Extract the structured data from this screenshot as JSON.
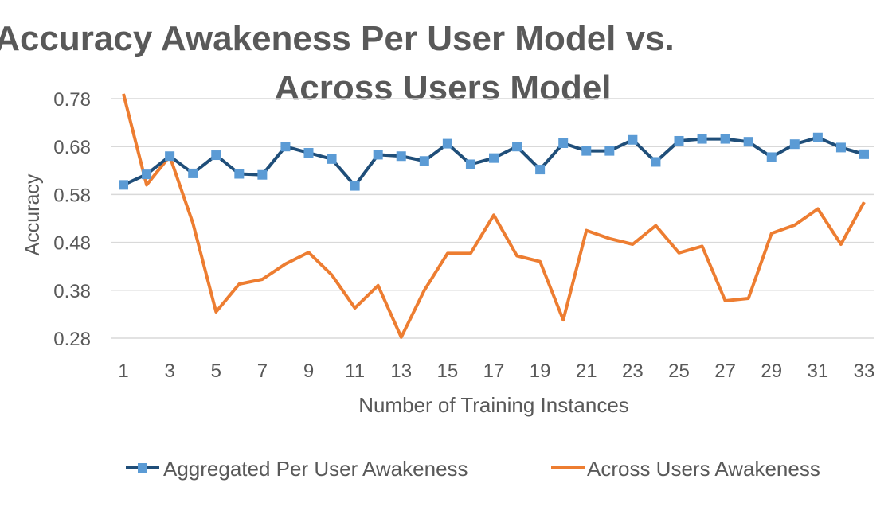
{
  "chart_data": {
    "type": "line",
    "title_line1": "Accuracy Awakeness Per User Model vs.",
    "title_line2": "Across Users Model",
    "xlabel": "Number of Training Instances",
    "ylabel": "Accuracy",
    "x": [
      1,
      2,
      3,
      4,
      5,
      6,
      7,
      8,
      9,
      10,
      11,
      12,
      13,
      14,
      15,
      16,
      17,
      18,
      19,
      20,
      21,
      22,
      23,
      24,
      25,
      26,
      27,
      28,
      29,
      30,
      31,
      32,
      33
    ],
    "x_tick_labels": [
      "1",
      "3",
      "5",
      "7",
      "9",
      "11",
      "13",
      "15",
      "17",
      "19",
      "21",
      "23",
      "25",
      "27",
      "29",
      "31",
      "33"
    ],
    "x_tick_values": [
      1,
      3,
      5,
      7,
      9,
      11,
      13,
      15,
      17,
      19,
      21,
      23,
      25,
      27,
      29,
      31,
      33
    ],
    "y_tick_labels": [
      "0.28",
      "0.38",
      "0.48",
      "0.58",
      "0.68",
      "0.78"
    ],
    "y_tick_values": [
      0.28,
      0.38,
      0.48,
      0.58,
      0.68,
      0.78
    ],
    "ylim": [
      0.28,
      0.78
    ],
    "xlim": [
      1,
      33
    ],
    "grid": "horizontal",
    "legend_position": "bottom",
    "series": [
      {
        "name": "Aggregated Per User Awakeness",
        "color": "#1f4e79",
        "marker_color": "#5b9bd5",
        "marker": "square",
        "values": [
          0.6,
          0.622,
          0.66,
          0.624,
          0.662,
          0.623,
          0.621,
          0.68,
          0.667,
          0.654,
          0.598,
          0.663,
          0.66,
          0.65,
          0.686,
          0.643,
          0.656,
          0.68,
          0.632,
          0.687,
          0.671,
          0.671,
          0.694,
          0.648,
          0.692,
          0.696,
          0.696,
          0.69,
          0.658,
          0.685,
          0.699,
          0.678,
          0.664
        ]
      },
      {
        "name": "Across Users Awakeness",
        "color": "#ed7d31",
        "marker": "none",
        "values": [
          0.79,
          0.6,
          0.66,
          0.52,
          0.335,
          0.393,
          0.403,
          0.435,
          0.459,
          0.412,
          0.343,
          0.39,
          0.282,
          0.38,
          0.457,
          0.457,
          0.537,
          0.452,
          0.44,
          0.318,
          0.505,
          0.488,
          0.476,
          0.515,
          0.458,
          0.472,
          0.358,
          0.363,
          0.499,
          0.516,
          0.55,
          0.476,
          0.564
        ]
      }
    ]
  }
}
